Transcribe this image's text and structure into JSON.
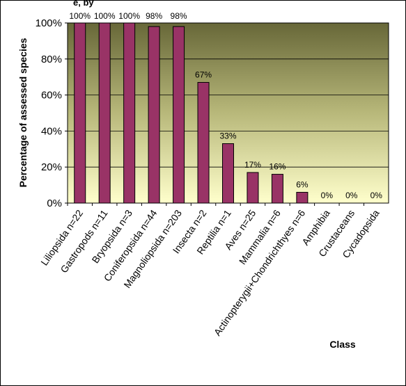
{
  "chart_data": {
    "type": "bar",
    "title_fragment": "e, by",
    "xlabel": "Class",
    "ylabel": "Percentage of assessed species",
    "ylim": [
      0,
      100
    ],
    "yticks": [
      "0%",
      "20%",
      "40%",
      "60%",
      "80%",
      "100%"
    ],
    "categories": [
      "Liliopsida n=22",
      "Gastropods n=11",
      "Bryopsida n=3",
      "Coniferopsida n=44",
      "Magnoliopsida n=203",
      "Insecta n=2",
      "Reptilia n=1",
      "Aves n=25",
      "Mammalia n=6",
      "Actinopterygii+Chondrichthyes n=6",
      "Amphibia",
      "Crustaceans",
      "Cycadopsida"
    ],
    "values": [
      100,
      100,
      100,
      98,
      98,
      67,
      33,
      17,
      16,
      6,
      0,
      0,
      0
    ],
    "data_labels": [
      "100%",
      "100%",
      "100%",
      "98%",
      "98%",
      "67%",
      "33%",
      "17%",
      "16%",
      "6%",
      "0%",
      "0%",
      "0%"
    ],
    "bar_color": "#993366",
    "grid": true,
    "legend": false,
    "background_gradient": [
      "#6b6b3a",
      "#ffffcc"
    ]
  }
}
